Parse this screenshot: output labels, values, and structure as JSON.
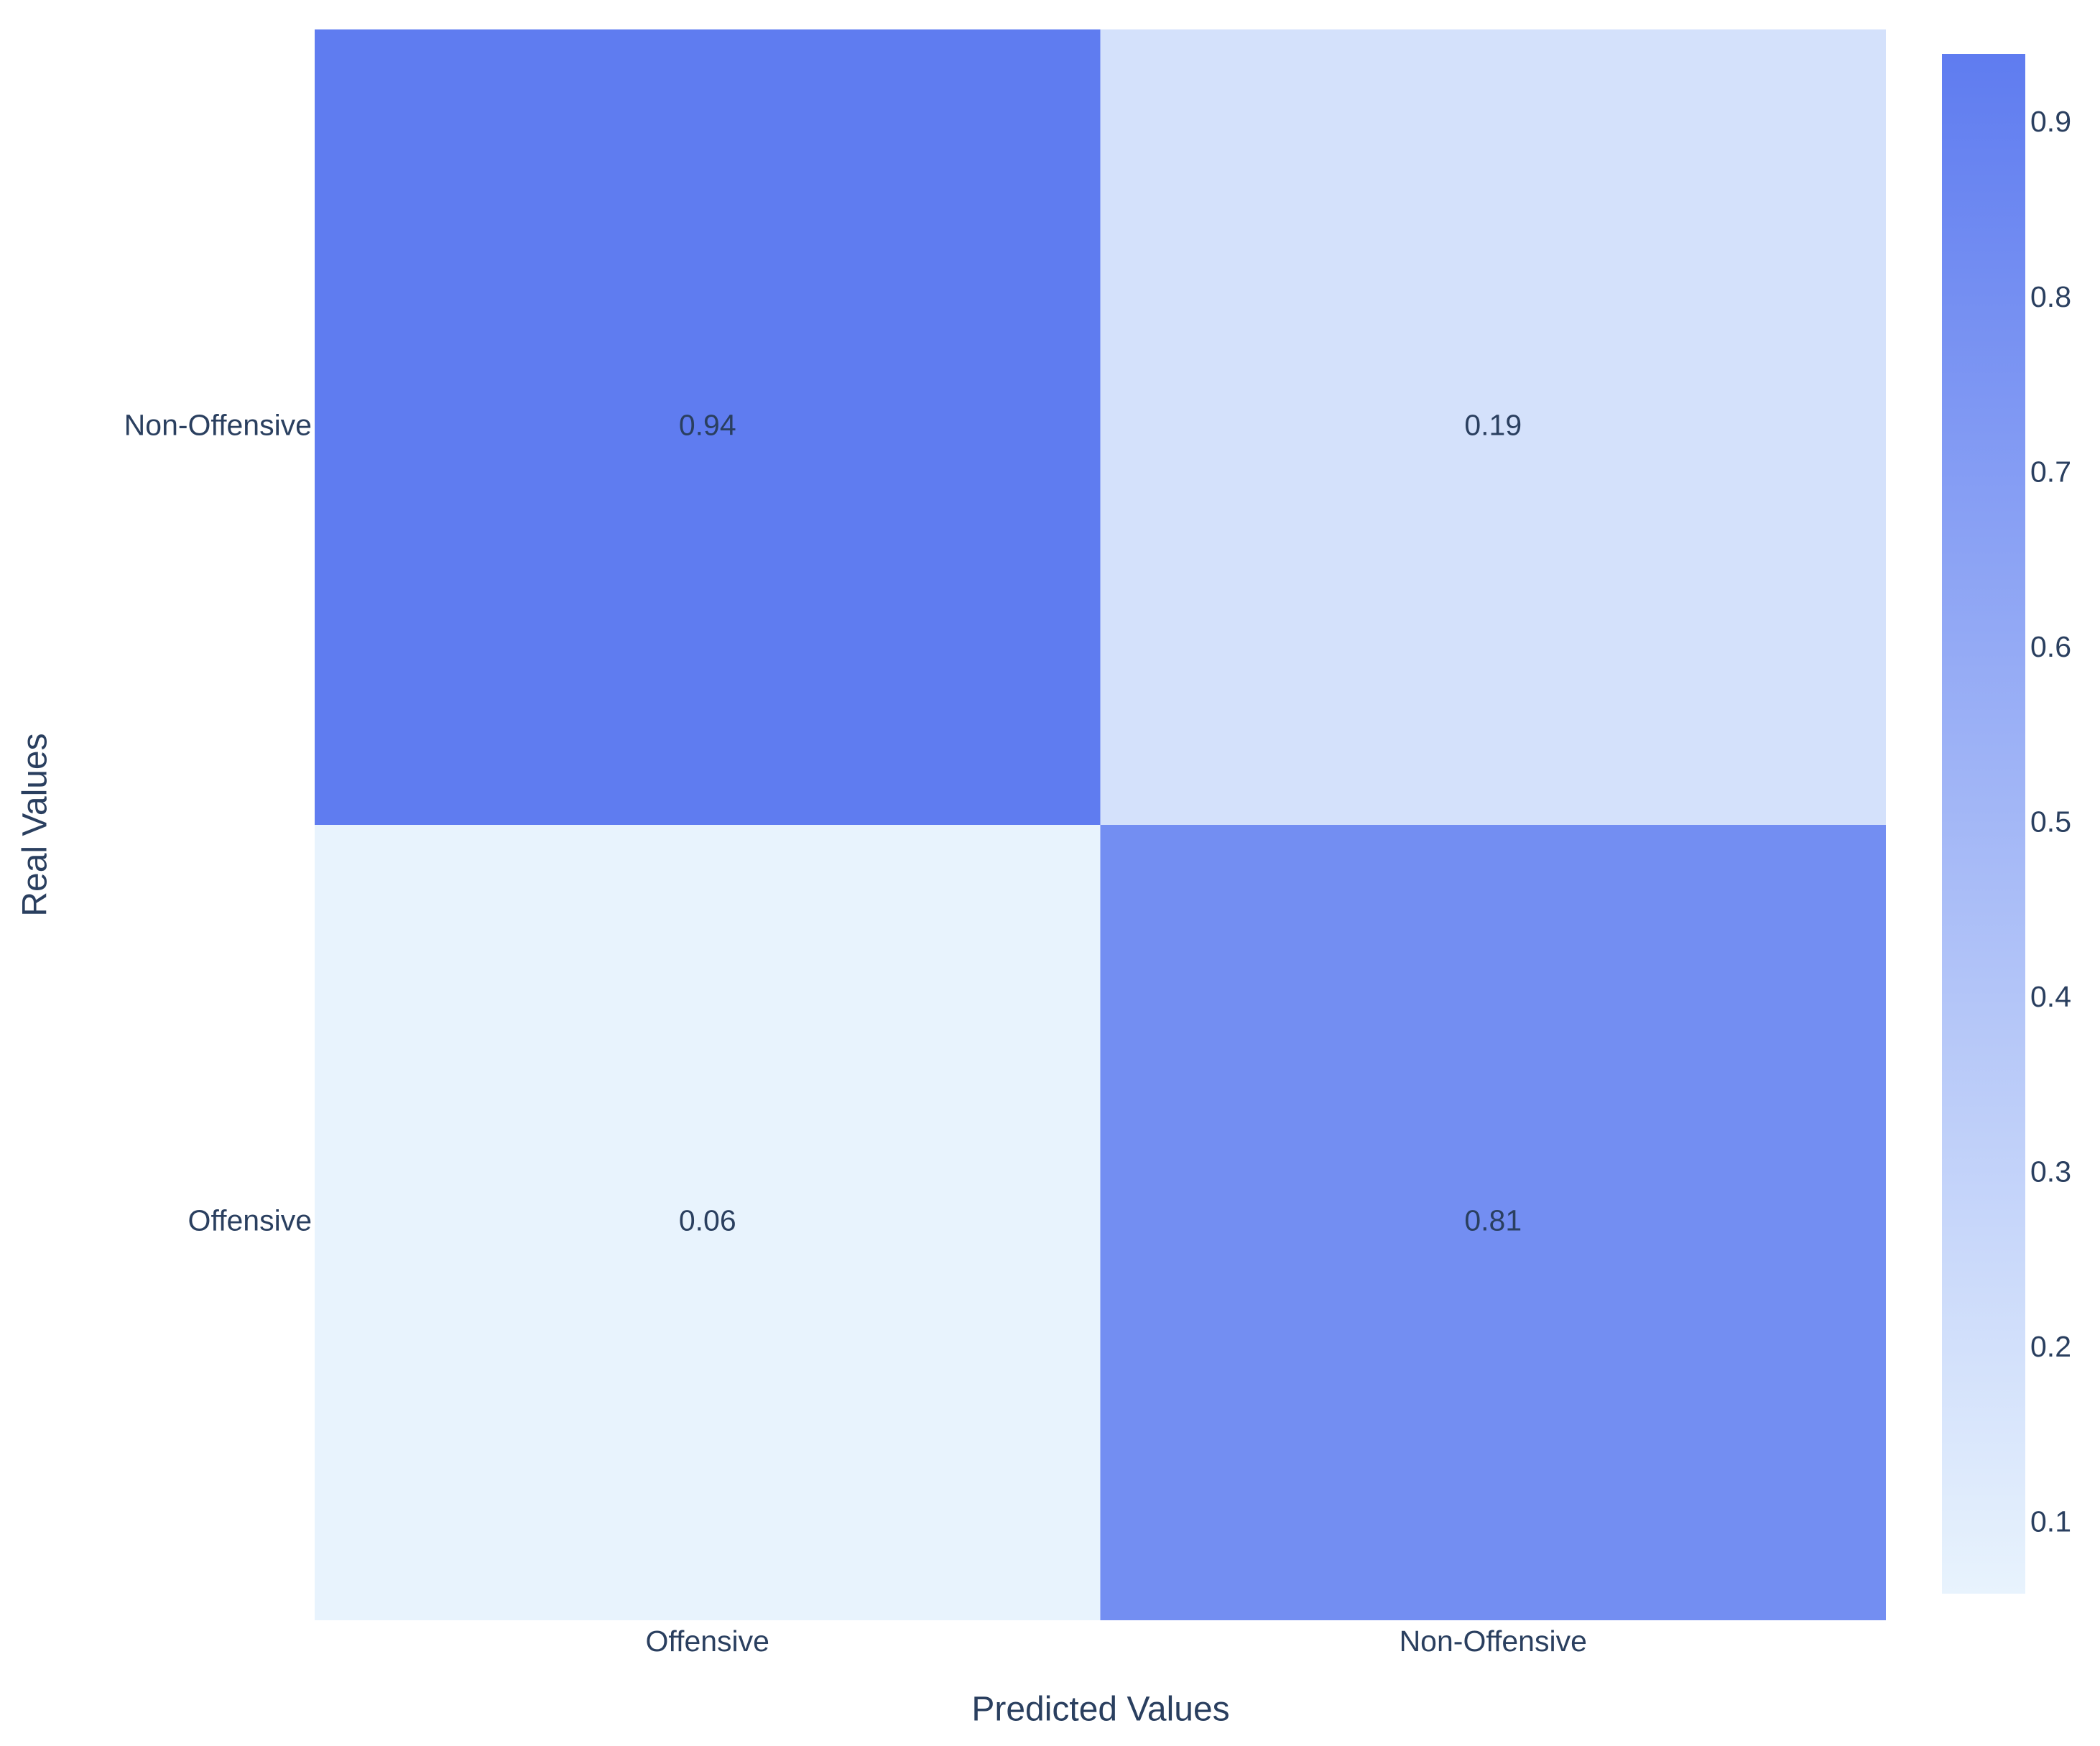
{
  "chart_data": {
    "type": "heatmap",
    "x_label": "Predicted Values",
    "y_label": "Real Values",
    "x_categories": [
      "Offensive",
      "Non-Offensive"
    ],
    "y_categories": [
      "Offensive",
      "Non-Offensive"
    ],
    "z": [
      [
        0.06,
        0.81
      ],
      [
        0.94,
        0.19
      ]
    ],
    "colorscale": [
      "#e8f3fd",
      "#5f7cf0"
    ],
    "zlim": [
      0.06,
      0.94
    ],
    "colorbar_ticks": [
      0.1,
      0.2,
      0.3,
      0.4,
      0.5,
      0.6,
      0.7,
      0.8,
      0.9
    ]
  }
}
